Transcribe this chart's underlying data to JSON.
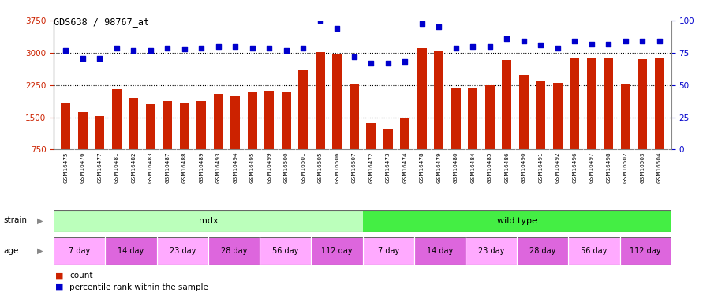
{
  "title": "GDS638 / 98767_at",
  "samples": [
    "GSM16475",
    "GSM16476",
    "GSM16477",
    "GSM16481",
    "GSM16482",
    "GSM16483",
    "GSM16487",
    "GSM16488",
    "GSM16489",
    "GSM16493",
    "GSM16494",
    "GSM16495",
    "GSM16499",
    "GSM16500",
    "GSM16501",
    "GSM16505",
    "GSM16506",
    "GSM16507",
    "GSM16472",
    "GSM16473",
    "GSM16474",
    "GSM16478",
    "GSM16479",
    "GSM16480",
    "GSM16484",
    "GSM16485",
    "GSM16486",
    "GSM16490",
    "GSM16491",
    "GSM16492",
    "GSM16496",
    "GSM16497",
    "GSM16498",
    "GSM16502",
    "GSM16503",
    "GSM16504"
  ],
  "bar_values": [
    1850,
    1620,
    1530,
    2150,
    1950,
    1800,
    1870,
    1820,
    1870,
    2050,
    2000,
    2100,
    2120,
    2100,
    2600,
    3020,
    2970,
    2270,
    1370,
    1220,
    1470,
    3120,
    3060,
    2190,
    2190,
    2250,
    2830,
    2480,
    2340,
    2310,
    2880,
    2870,
    2870,
    2280,
    2860,
    2870
  ],
  "dot_values": [
    77,
    71,
    71,
    79,
    77,
    77,
    79,
    78,
    79,
    80,
    80,
    79,
    79,
    77,
    79,
    100,
    94,
    72,
    67,
    67,
    68,
    98,
    95,
    79,
    80,
    80,
    86,
    84,
    81,
    79,
    84,
    82,
    82,
    84,
    84,
    84
  ],
  "bar_color": "#cc2200",
  "dot_color": "#0000cc",
  "ylim_left": [
    750,
    3750
  ],
  "ylim_right": [
    0,
    100
  ],
  "yticks_left": [
    750,
    1500,
    2250,
    3000,
    3750
  ],
  "yticks_right": [
    0,
    25,
    50,
    75,
    100
  ],
  "gridlines": [
    1500,
    2250,
    3000
  ],
  "strain_groups": [
    {
      "label": "mdx",
      "start": 0,
      "end": 18,
      "color": "#bbffbb"
    },
    {
      "label": "wild type",
      "start": 18,
      "end": 36,
      "color": "#44ee44"
    }
  ],
  "age_groups": [
    {
      "label": "7 day",
      "start": 0,
      "end": 3,
      "color": "#ffaaff"
    },
    {
      "label": "14 day",
      "start": 3,
      "end": 6,
      "color": "#dd66dd"
    },
    {
      "label": "23 day",
      "start": 6,
      "end": 9,
      "color": "#ffaaff"
    },
    {
      "label": "28 day",
      "start": 9,
      "end": 12,
      "color": "#dd66dd"
    },
    {
      "label": "56 day",
      "start": 12,
      "end": 15,
      "color": "#ffaaff"
    },
    {
      "label": "112 day",
      "start": 15,
      "end": 18,
      "color": "#dd66dd"
    },
    {
      "label": "7 day",
      "start": 18,
      "end": 21,
      "color": "#ffaaff"
    },
    {
      "label": "14 day",
      "start": 21,
      "end": 24,
      "color": "#dd66dd"
    },
    {
      "label": "23 day",
      "start": 24,
      "end": 27,
      "color": "#ffaaff"
    },
    {
      "label": "28 day",
      "start": 27,
      "end": 30,
      "color": "#dd66dd"
    },
    {
      "label": "56 day",
      "start": 30,
      "end": 33,
      "color": "#ffaaff"
    },
    {
      "label": "112 day",
      "start": 33,
      "end": 36,
      "color": "#dd66dd"
    }
  ],
  "legend_items": [
    {
      "label": "count",
      "color": "#cc2200"
    },
    {
      "label": "percentile rank within the sample",
      "color": "#0000cc"
    }
  ],
  "bg_color": "#ffffff",
  "plot_bg": "#ffffff",
  "tick_bg": "#cccccc"
}
